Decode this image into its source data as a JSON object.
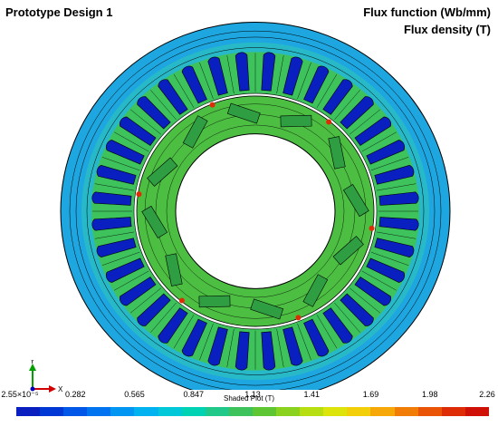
{
  "header": {
    "title": "Prototype Design 1",
    "quantity_1": "Flux function (Wb/mm)",
    "quantity_2": "Flux density (T)"
  },
  "axes_triad": {
    "y_label": "Y",
    "x_label": "X"
  },
  "colorbar": {
    "caption": "Shaded Plot (T)",
    "labels": [
      "2.55×10⁻⁵",
      "0.282",
      "0.565",
      "0.847",
      "1.13",
      "1.41",
      "1.69",
      "1.98",
      "2.26"
    ],
    "colors": [
      "#0a1fbf",
      "#0038d6",
      "#0057e8",
      "#0074f0",
      "#0096f2",
      "#00b2ef",
      "#00c8d8",
      "#00d2b4",
      "#20c88a",
      "#3ec25c",
      "#5dc632",
      "#8ad21e",
      "#b7de10",
      "#dde40a",
      "#f2cf08",
      "#f5a807",
      "#f27d06",
      "#ea5406",
      "#de2c06",
      "#cf1006"
    ]
  },
  "model": {
    "stator_slots": 36,
    "rotor_poles": 6,
    "colors": {
      "yoke": "#1da6e0",
      "yoke_inner": "#27b9c8",
      "tooth": "#3ec25c",
      "tooth_tip": "#79cc2a",
      "slot": "#0a1fbf",
      "rotor": "#4cbf42",
      "magnet": "#2f9e43",
      "flux_line": "#000000",
      "hot": "#de2c06"
    }
  }
}
